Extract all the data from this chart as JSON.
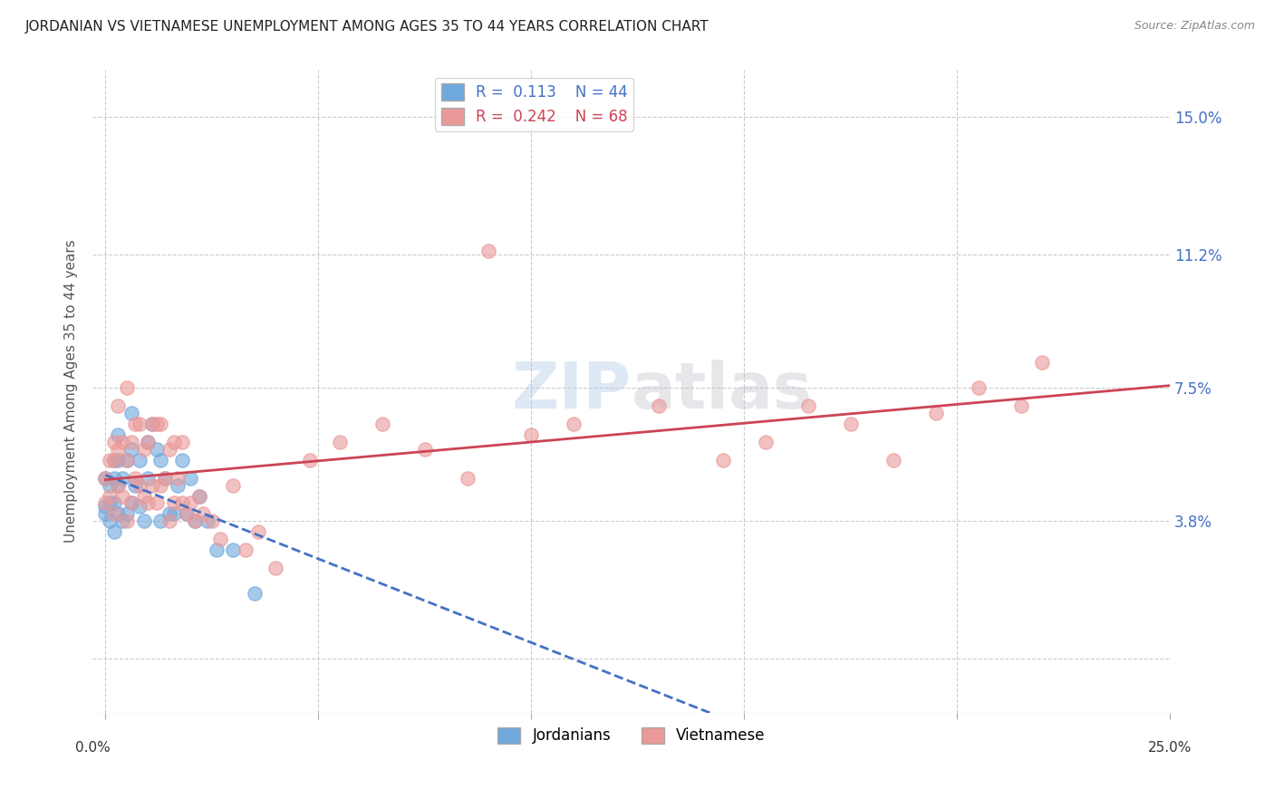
{
  "title": "JORDANIAN VS VIETNAMESE UNEMPLOYMENT AMONG AGES 35 TO 44 YEARS CORRELATION CHART",
  "source": "Source: ZipAtlas.com",
  "ylabel": "Unemployment Among Ages 35 to 44 years",
  "yticks": [
    0.0,
    0.038,
    0.075,
    0.112,
    0.15
  ],
  "ytick_labels": [
    "",
    "3.8%",
    "7.5%",
    "11.2%",
    "15.0%"
  ],
  "xlim": [
    0.0,
    0.25
  ],
  "ylim": [
    -0.015,
    0.163
  ],
  "jordanian_color": "#6fa8dc",
  "vietnamese_color": "#ea9999",
  "jordanian_line_color": "#4472c4",
  "vietnamese_line_color": "#cc4455",
  "jordanian_R": 0.113,
  "jordanian_N": 44,
  "vietnamese_R": 0.242,
  "vietnamese_N": 68,
  "watermark": "ZIPatlas",
  "jordanian_x": [
    0.0,
    0.0,
    0.0,
    0.001,
    0.001,
    0.001,
    0.002,
    0.002,
    0.002,
    0.002,
    0.003,
    0.003,
    0.003,
    0.003,
    0.004,
    0.004,
    0.005,
    0.005,
    0.006,
    0.006,
    0.006,
    0.007,
    0.008,
    0.008,
    0.009,
    0.01,
    0.01,
    0.011,
    0.012,
    0.013,
    0.013,
    0.014,
    0.015,
    0.016,
    0.017,
    0.018,
    0.019,
    0.02,
    0.021,
    0.022,
    0.024,
    0.026,
    0.03,
    0.035
  ],
  "jordanian_y": [
    0.042,
    0.05,
    0.04,
    0.038,
    0.043,
    0.048,
    0.035,
    0.043,
    0.05,
    0.055,
    0.04,
    0.048,
    0.055,
    0.062,
    0.038,
    0.05,
    0.04,
    0.055,
    0.043,
    0.058,
    0.068,
    0.048,
    0.042,
    0.055,
    0.038,
    0.05,
    0.06,
    0.065,
    0.058,
    0.038,
    0.055,
    0.05,
    0.04,
    0.04,
    0.048,
    0.055,
    0.04,
    0.05,
    0.038,
    0.045,
    0.038,
    0.03,
    0.03,
    0.018
  ],
  "vietnamese_x": [
    0.0,
    0.0,
    0.001,
    0.001,
    0.002,
    0.002,
    0.002,
    0.003,
    0.003,
    0.003,
    0.004,
    0.004,
    0.005,
    0.005,
    0.005,
    0.006,
    0.006,
    0.007,
    0.007,
    0.008,
    0.008,
    0.009,
    0.009,
    0.01,
    0.01,
    0.011,
    0.011,
    0.012,
    0.012,
    0.013,
    0.013,
    0.014,
    0.015,
    0.015,
    0.016,
    0.016,
    0.017,
    0.018,
    0.018,
    0.019,
    0.02,
    0.021,
    0.022,
    0.023,
    0.025,
    0.027,
    0.03,
    0.033,
    0.036,
    0.04,
    0.048,
    0.055,
    0.065,
    0.075,
    0.085,
    0.09,
    0.1,
    0.11,
    0.13,
    0.145,
    0.155,
    0.165,
    0.175,
    0.185,
    0.195,
    0.205,
    0.215,
    0.22
  ],
  "vietnamese_y": [
    0.043,
    0.05,
    0.045,
    0.055,
    0.04,
    0.055,
    0.06,
    0.048,
    0.058,
    0.07,
    0.045,
    0.06,
    0.038,
    0.055,
    0.075,
    0.043,
    0.06,
    0.05,
    0.065,
    0.048,
    0.065,
    0.045,
    0.058,
    0.043,
    0.06,
    0.048,
    0.065,
    0.043,
    0.065,
    0.048,
    0.065,
    0.05,
    0.038,
    0.058,
    0.043,
    0.06,
    0.05,
    0.043,
    0.06,
    0.04,
    0.043,
    0.038,
    0.045,
    0.04,
    0.038,
    0.033,
    0.048,
    0.03,
    0.035,
    0.025,
    0.055,
    0.06,
    0.065,
    0.058,
    0.05,
    0.113,
    0.062,
    0.065,
    0.07,
    0.055,
    0.06,
    0.07,
    0.065,
    0.055,
    0.068,
    0.075,
    0.07,
    0.082
  ]
}
